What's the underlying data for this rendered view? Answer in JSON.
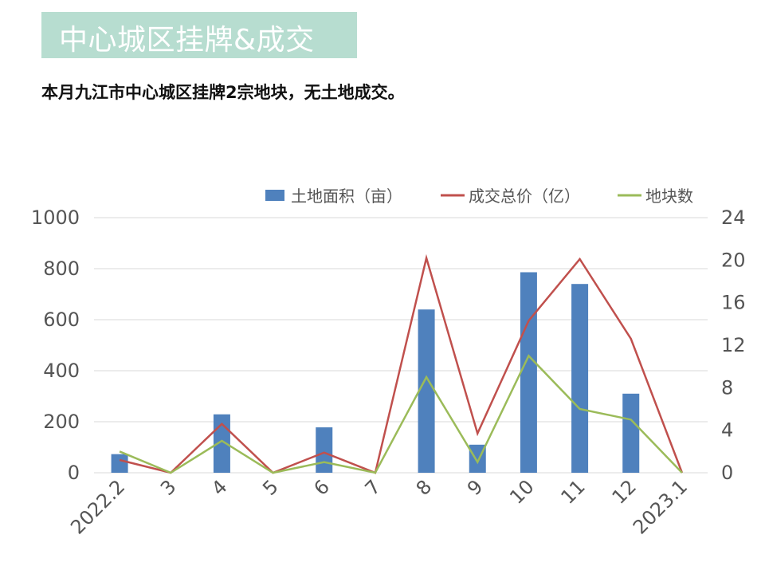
{
  "header": {
    "title": "中心城区挂牌&成交",
    "subtitle": "本月九江市中心城区挂牌2宗地块，无土地成交。"
  },
  "colors": {
    "title_bg": "#b7ddd0",
    "bar": "#4f81bd",
    "line_price": "#c0504d",
    "line_count": "#9bbb59",
    "grid": "#d9d9d9"
  },
  "chart_data": {
    "type": "bar+line",
    "categories": [
      "2022.2",
      "3",
      "4",
      "5",
      "6",
      "7",
      "8",
      "9",
      "10",
      "11",
      "12",
      "2023.1"
    ],
    "y_left_ticks": [
      "0",
      "200",
      "400",
      "600",
      "800",
      "1000"
    ],
    "y_right_ticks": [
      "0",
      "4",
      "8",
      "12",
      "16",
      "20",
      "24"
    ],
    "ylim_left": [
      0,
      1000
    ],
    "ylim_right": [
      0,
      24
    ],
    "grid": true,
    "legend_position": "top-right",
    "series": [
      {
        "name": "土地面积（亩）",
        "type": "bar",
        "axis": "left",
        "values": [
          73,
          0,
          229,
          0,
          178,
          0,
          640,
          110,
          786,
          740,
          310,
          0
        ]
      },
      {
        "name": "成交总价（亿）",
        "type": "line",
        "axis": "right",
        "values": [
          1.2,
          0,
          4.6,
          0,
          1.9,
          0,
          20.2,
          3.7,
          14.3,
          20.1,
          12.6,
          0
        ]
      },
      {
        "name": "地块数",
        "type": "line",
        "axis": "right",
        "values": [
          2,
          0,
          3,
          0,
          1,
          0,
          9,
          1,
          11,
          6,
          5,
          0
        ]
      }
    ]
  }
}
